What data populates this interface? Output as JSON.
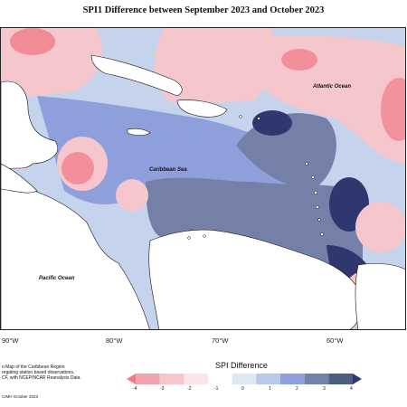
{
  "title": "SPI1 Difference between September 2023 and October 2023",
  "ocean_labels": {
    "atlantic": "Atlantic Ocean",
    "caribbean": "Caribbean Sea",
    "pacific": "Pacific Ocean"
  },
  "longitude_labels": [
    "90°W",
    "80°W",
    "70°W",
    "60°W"
  ],
  "credits_lines": [
    "n Map of the Caribbean Region",
    "regating station based observations,",
    "CF, with NCEP/NCAR Reanalysis Data."
  ],
  "copyright": "CIMH October 2023",
  "legend": {
    "title": "SPI Difference",
    "ticks": [
      "-4",
      "-3",
      "-2",
      "-1",
      "0",
      "1",
      "2",
      "3",
      "4"
    ],
    "colors": [
      "#f07c88",
      "#f3a3ad",
      "#f6c6cd",
      "#fae5e8",
      "#ffffff",
      "#dde8f2",
      "#b9c9ea",
      "#8f9fdc",
      "#7480a8",
      "#4c5d82",
      "#30376e"
    ]
  }
}
